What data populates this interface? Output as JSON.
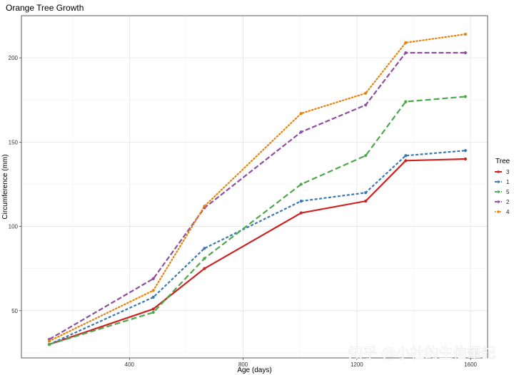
{
  "chart_data": {
    "type": "line",
    "title": "Orange Tree Growth",
    "xlabel": "Age (days)",
    "ylabel": "Circumference (mm)",
    "x": [
      118,
      484,
      664,
      1004,
      1231,
      1372,
      1582
    ],
    "xlim": [
      20,
      1660
    ],
    "ylim": [
      22,
      225
    ],
    "x_ticks": [
      400,
      800,
      1200,
      1600
    ],
    "y_ticks": [
      50,
      100,
      150,
      200
    ],
    "grid": true,
    "legend": {
      "title": "Tree",
      "position": "right"
    },
    "series": [
      {
        "name": "3",
        "color": "#CC2222",
        "dash": "solid",
        "values": [
          30,
          51,
          75,
          108,
          115,
          139,
          140
        ]
      },
      {
        "name": "1",
        "color": "#3A78B5",
        "dash": "short-dash",
        "values": [
          30,
          58,
          87,
          115,
          120,
          142,
          145
        ]
      },
      {
        "name": "5",
        "color": "#4DA84A",
        "dash": "long-dash",
        "values": [
          30,
          49,
          81,
          125,
          142,
          174,
          177
        ]
      },
      {
        "name": "2",
        "color": "#8E4FA0",
        "dash": "dash",
        "values": [
          33,
          69,
          111,
          156,
          172,
          203,
          203
        ]
      },
      {
        "name": "4",
        "color": "#E8820E",
        "dash": "dot",
        "values": [
          32,
          62,
          112,
          167,
          179,
          209,
          214
        ]
      }
    ]
  },
  "watermark": "知乎 @小杜的生信筆記"
}
